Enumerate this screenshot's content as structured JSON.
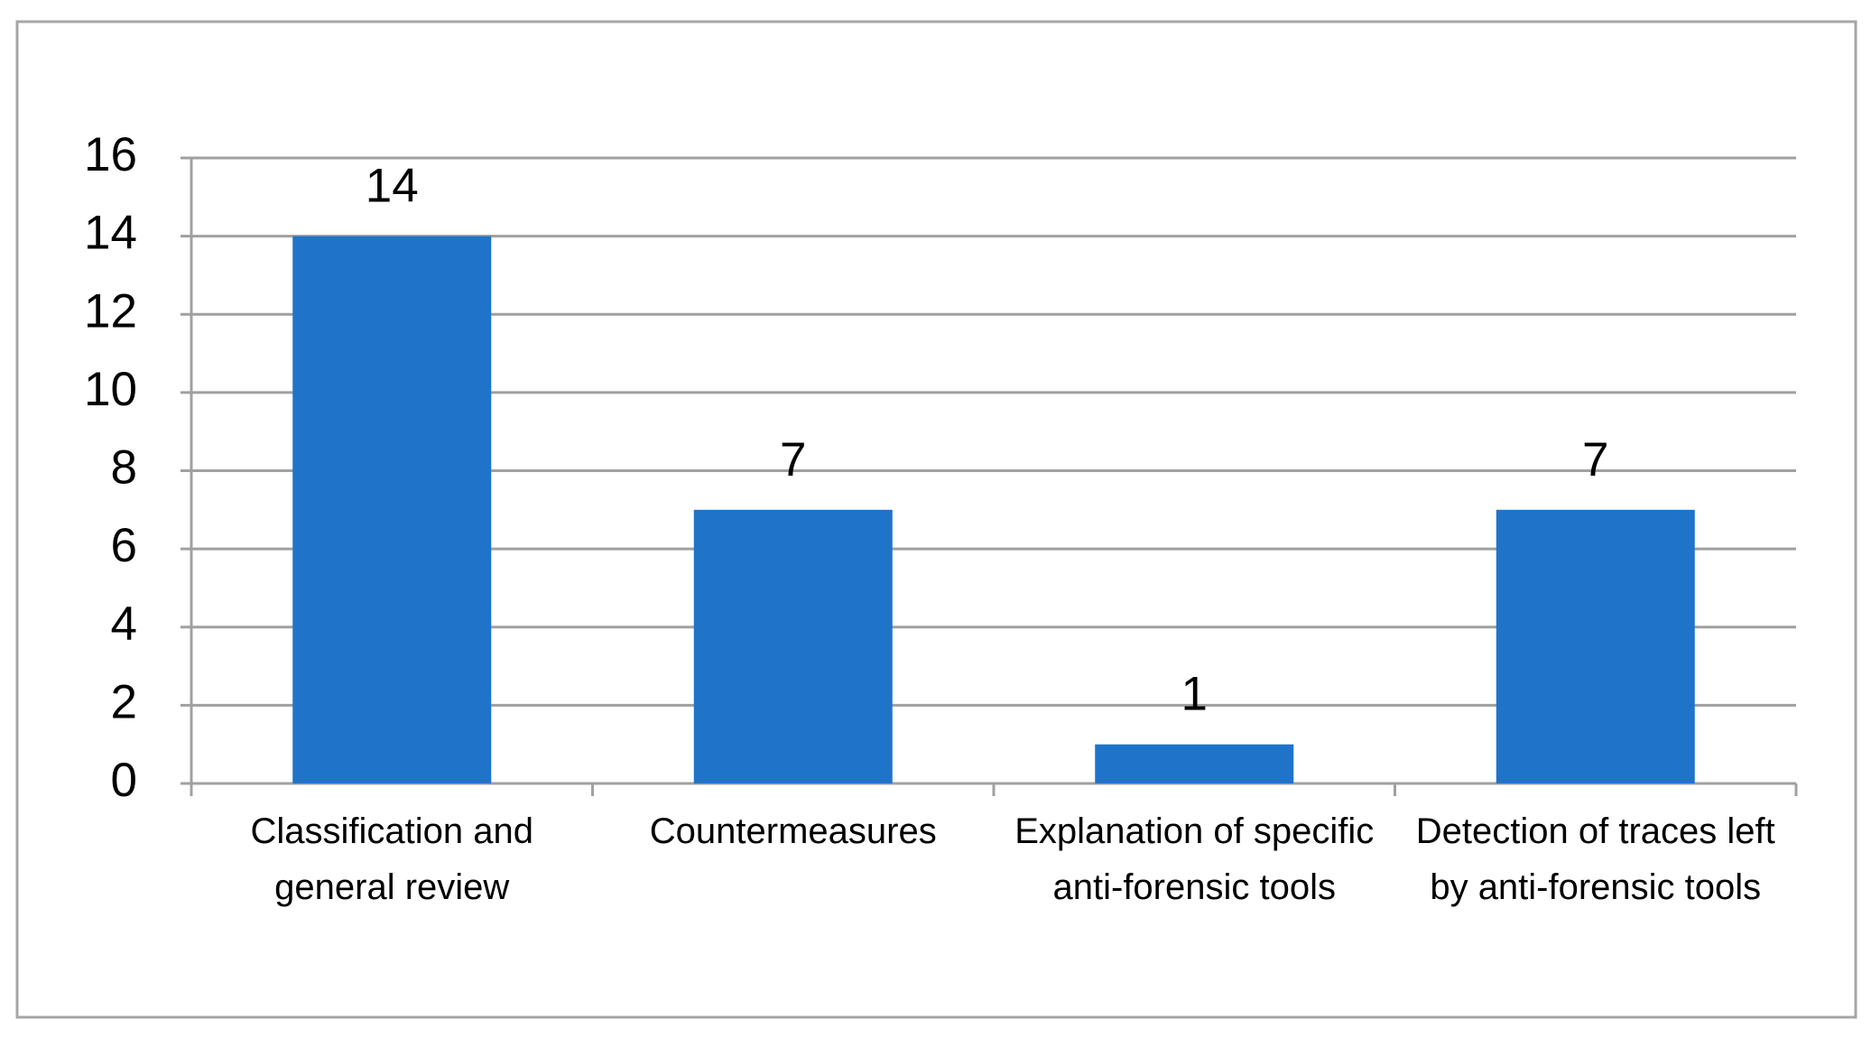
{
  "chart_data": {
    "type": "bar",
    "categories": [
      "Classification and general review",
      "Countermeasures",
      "Explanation of specific anti-forensic tools",
      "Detection of traces left by anti-forensic tools"
    ],
    "values": [
      14,
      7,
      1,
      7
    ],
    "color": "#1f74c9",
    "ylim": [
      0,
      16
    ],
    "yticks": [
      0,
      2,
      4,
      6,
      8,
      10,
      12,
      14,
      16
    ],
    "grid": true
  }
}
